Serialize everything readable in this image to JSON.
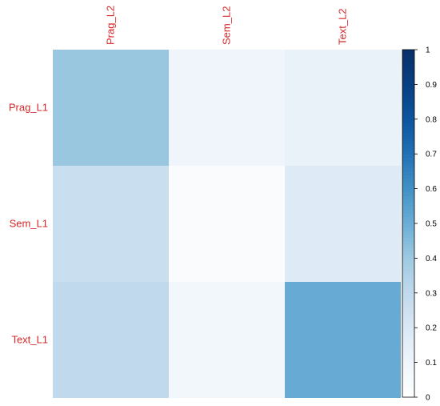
{
  "chart_data": {
    "type": "heatmap",
    "title": "",
    "xlabel": "",
    "ylabel": "",
    "x_categories": [
      "Prag_L2",
      "Sem_L2",
      "Text_L2"
    ],
    "y_categories": [
      "Prag_L1",
      "Sem_L1",
      "Text_L1"
    ],
    "values": [
      [
        0.41,
        0.1,
        0.13
      ],
      [
        0.27,
        0.04,
        0.18
      ],
      [
        0.3,
        0.08,
        0.51
      ]
    ],
    "colorbar": {
      "range": [
        0,
        1
      ],
      "ticks": [
        "0",
        "0.1",
        "0.2",
        "0.3",
        "0.4",
        "0.5",
        "0.6",
        "0.7",
        "0.8",
        "0.9",
        "1"
      ],
      "position": "right"
    },
    "label_color": "#d62728",
    "colors": {
      "low": "#ffffff",
      "high": "#08306b"
    }
  }
}
